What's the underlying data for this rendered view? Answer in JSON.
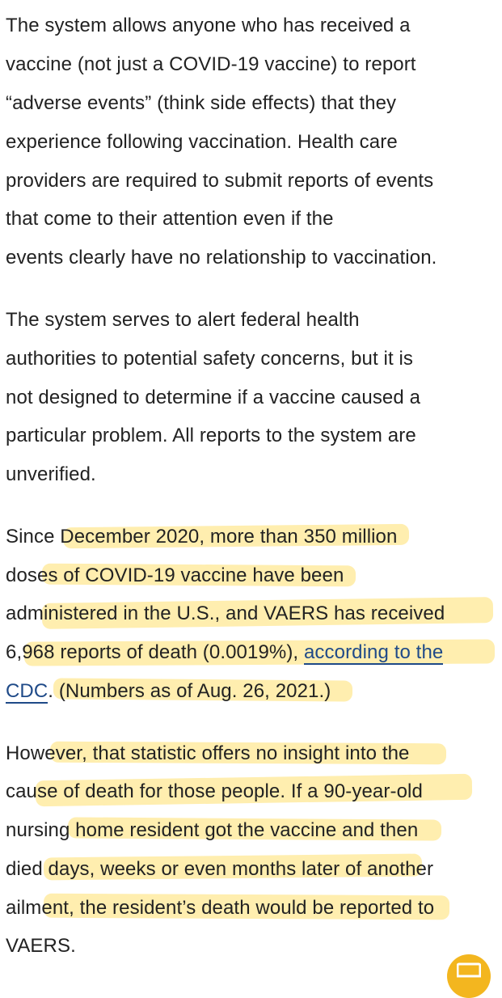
{
  "article": {
    "p1": [
      "The system allows anyone who has received a",
      "vaccine (not just a COVID-19 vaccine) to report",
      "“adverse events” (think side effects) that they",
      "experience following vaccination. Health care",
      "providers are required to submit reports of events",
      "that come to their attention even if the",
      "events clearly have no relationship to vaccination."
    ],
    "p2": [
      "The system serves to alert federal health",
      "authorities to potential safety concerns, but it is",
      "not designed to determine if a vaccine caused a",
      "particular problem. All reports to the system are",
      "unverified."
    ],
    "p3": {
      "l1": "Since December 2020, more than 350 million",
      "l2": "doses of COVID-19 vaccine have been",
      "l3": "administered in the U.S., and VAERS has received",
      "l4_pre": "6,968 reports of death (0.0019%), ",
      "link_part1": "according to the",
      "link_part2": "CDC",
      "l5_post": ". (Numbers as of Aug. 26, 2021.)"
    },
    "p4": [
      "However, that statistic offers no insight into the",
      "cause of death for those people. If a 90-year-old",
      "nursing home resident got the vaccine and then",
      "died days, weeks or even months later of another",
      "ailment, the resident’s death would be reported to",
      "VAERS."
    ]
  },
  "chat_button": {
    "icon": "chat-bubble-icon",
    "color": "#f3b61f"
  },
  "highlight_color": "#ffe06e"
}
